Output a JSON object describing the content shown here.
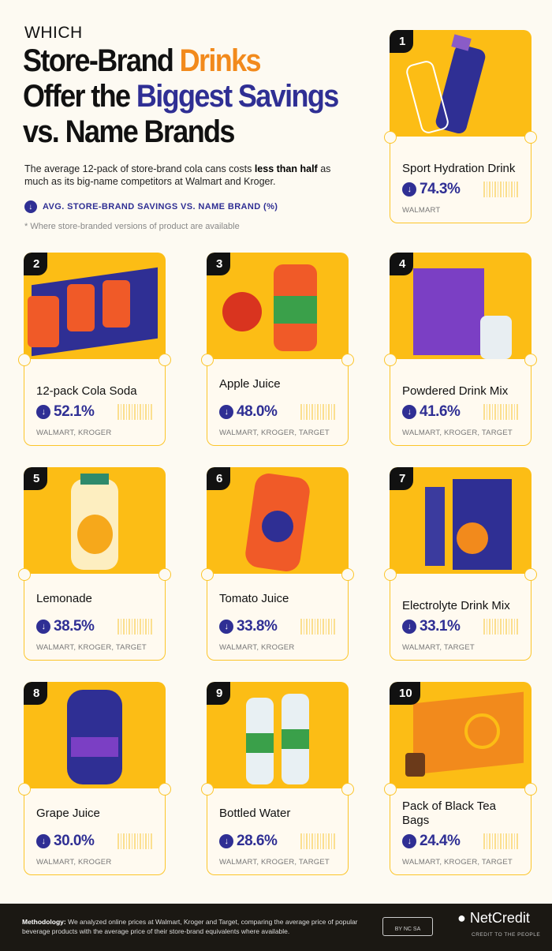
{
  "header": {
    "kicker": "WHICH",
    "title_1a": "Store-Brand ",
    "title_1b": "Drinks",
    "title_2a": "Offer the ",
    "title_2b": "Biggest Savings",
    "title_3": "vs. Name Brands",
    "intro_a": "The average 12-pack of store-brand cola cans costs ",
    "intro_bold": "less than half",
    "intro_b": " as much as its big-name competitors at Walmart and Kroger.",
    "legend": "AVG. STORE-BRAND SAVINGS VS. NAME BRAND (%)",
    "note": "* Where store-branded versions of product are available"
  },
  "colors": {
    "accent_orange": "#f28a1c",
    "accent_blue": "#2f2f94",
    "card_yellow": "#fcbd15"
  },
  "items": [
    {
      "rank": "1",
      "name": "Sport Hydration Drink",
      "savings": "74.3%",
      "stores": "WALMART"
    },
    {
      "rank": "2",
      "name": "12-pack Cola Soda",
      "savings": "52.1%",
      "stores": "WALMART, KROGER"
    },
    {
      "rank": "3",
      "name": "Apple Juice",
      "savings": "48.0%",
      "stores": "WALMART, KROGER, TARGET"
    },
    {
      "rank": "4",
      "name": "Powdered Drink Mix",
      "savings": "41.6%",
      "stores": "WALMART, KROGER, TARGET"
    },
    {
      "rank": "5",
      "name": "Lemonade",
      "savings": "38.5%",
      "stores": "WALMART, KROGER, TARGET"
    },
    {
      "rank": "6",
      "name": "Tomato Juice",
      "savings": "33.8%",
      "stores": "WALMART, KROGER"
    },
    {
      "rank": "7",
      "name": "Electrolyte Drink Mix",
      "savings": "33.1%",
      "stores": "WALMART, TARGET"
    },
    {
      "rank": "8",
      "name": "Grape Juice",
      "savings": "30.0%",
      "stores": "WALMART, KROGER"
    },
    {
      "rank": "9",
      "name": "Bottled Water",
      "savings": "28.6%",
      "stores": "WALMART, KROGER, TARGET"
    },
    {
      "rank": "10",
      "name": "Pack of Black Tea Bags",
      "savings": "24.4%",
      "stores": "WALMART, KROGER, TARGET"
    }
  ],
  "footer": {
    "methodology_label": "Methodology:",
    "methodology": " We analyzed online prices at Walmart, Kroger and Target, comparing the average price of popular beverage products with the average price of their store-brand equivalents where available.",
    "license": "BY  NC  SA",
    "brand": "NetCredit",
    "tagline": "CREDIT TO THE PEOPLE"
  },
  "icons": {
    "savings": "arrow-down-circle-icon"
  }
}
